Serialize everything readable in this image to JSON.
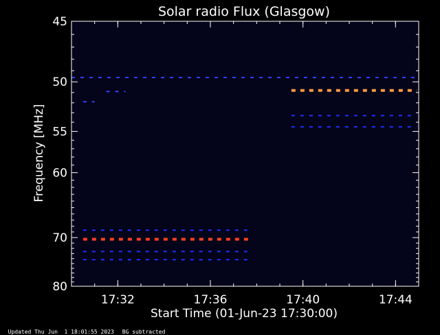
{
  "chart_data": {
    "type": "heatmap",
    "title": "Solar radio Flux (Glasgow)",
    "xlabel": "Start Time (01-Jun-23 17:30:00)",
    "ylabel": "Frequency [MHz]",
    "x_unit": "time",
    "xlim": [
      "17:30:00",
      "17:45:00"
    ],
    "x_ticks": [
      "17:32",
      "17:36",
      "17:40",
      "17:44"
    ],
    "ylim": [
      45,
      80
    ],
    "y_scale": "reciprocal",
    "y_ticks": [
      45,
      50,
      55,
      60,
      70,
      80
    ],
    "features": [
      {
        "start": "17:30:30",
        "end": "17:37:50",
        "freq_mhz": 70.3,
        "level": "high",
        "color": "#ff4020"
      },
      {
        "start": "17:30:30",
        "end": "17:37:50",
        "freq_mhz": 68.7,
        "level": "low",
        "color": "#2030ff"
      },
      {
        "start": "17:30:30",
        "end": "17:37:50",
        "freq_mhz": 72.6,
        "level": "low",
        "color": "#2030ff"
      },
      {
        "start": "17:30:30",
        "end": "17:37:50",
        "freq_mhz": 74.2,
        "level": "low",
        "color": "#2030ff"
      },
      {
        "start": "17:39:30",
        "end": "17:44:55",
        "freq_mhz": 50.8,
        "level": "high",
        "color": "#ff9a40"
      },
      {
        "start": "17:39:30",
        "end": "17:44:55",
        "freq_mhz": 53.3,
        "level": "low",
        "color": "#2030ff"
      },
      {
        "start": "17:39:30",
        "end": "17:44:55",
        "freq_mhz": 54.5,
        "level": "low",
        "color": "#2030ff"
      },
      {
        "start": "17:30:00",
        "end": "17:44:55",
        "freq_mhz": 49.6,
        "level": "low",
        "color": "#3040ff"
      },
      {
        "start": "17:30:30",
        "end": "17:31:00",
        "freq_mhz": 51.9,
        "level": "low",
        "color": "#3040ff"
      },
      {
        "start": "17:31:30",
        "end": "17:32:20",
        "freq_mhz": 50.9,
        "level": "low",
        "color": "#3040ff"
      }
    ]
  },
  "footer": {
    "updated": "Updated Thu Jun  1 18:01:55 2023",
    "note": "BG subtracted"
  }
}
